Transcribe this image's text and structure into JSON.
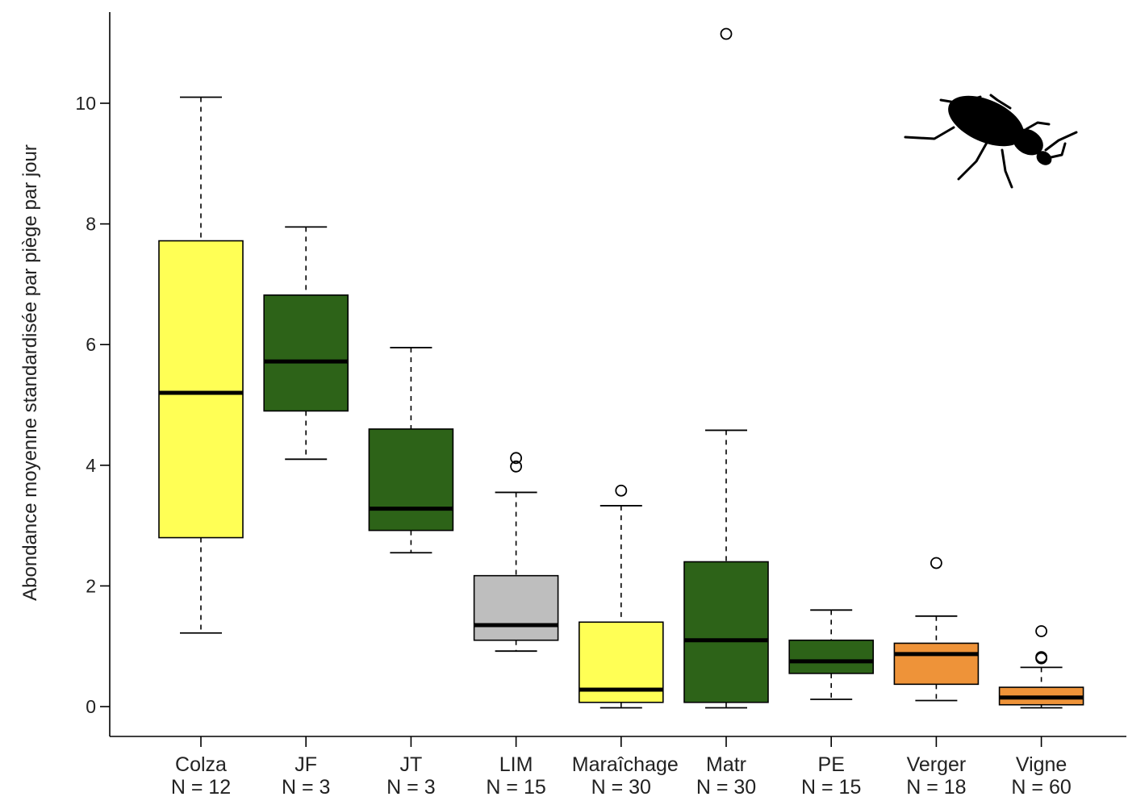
{
  "chart_data": {
    "type": "boxplot",
    "ylabel": "Abondance moyenne standardisée par piège par jour",
    "ylim": [
      -0.5,
      11.5
    ],
    "yticks": [
      0,
      2,
      4,
      6,
      8,
      10
    ],
    "ytick_labels": [
      "0",
      "2",
      "4",
      "6",
      "8",
      "10"
    ],
    "grid": false,
    "legend": "none",
    "icon": "beetle-silhouette-icon",
    "categories": [
      {
        "name": "Colza",
        "n_label": "N = 12",
        "color": "#FFFF55",
        "min": 1.22,
        "q1": 2.8,
        "median": 5.2,
        "q3": 7.72,
        "max": 10.1,
        "outliers": []
      },
      {
        "name": "JF",
        "n_label": "N = 3",
        "color": "#2D6318",
        "min": 4.1,
        "q1": 4.9,
        "median": 5.72,
        "q3": 6.82,
        "max": 7.95,
        "outliers": []
      },
      {
        "name": "JT",
        "n_label": "N = 3",
        "color": "#2D6318",
        "min": 2.55,
        "q1": 2.92,
        "median": 3.28,
        "q3": 4.6,
        "max": 5.95,
        "outliers": []
      },
      {
        "name": "LIM",
        "n_label": "N = 15",
        "color": "#BEBEBE",
        "min": 0.92,
        "q1": 1.1,
        "median": 1.35,
        "q3": 2.17,
        "max": 3.55,
        "outliers": [
          3.98,
          4.12
        ]
      },
      {
        "name": "Maraîchage",
        "n_label": "N = 30",
        "color": "#FFFF55",
        "min": -0.02,
        "q1": 0.07,
        "median": 0.28,
        "q3": 1.4,
        "max": 3.33,
        "outliers": [
          3.58
        ]
      },
      {
        "name": "Matr",
        "n_label": "N = 30",
        "color": "#2D6318",
        "min": -0.02,
        "q1": 0.07,
        "median": 1.1,
        "q3": 2.4,
        "max": 4.58,
        "outliers": [
          11.15
        ]
      },
      {
        "name": "PE",
        "n_label": "N = 15",
        "color": "#2D6318",
        "min": 0.12,
        "q1": 0.55,
        "median": 0.75,
        "q3": 1.1,
        "max": 1.6,
        "outliers": []
      },
      {
        "name": "Verger",
        "n_label": "N = 18",
        "color": "#EE9339",
        "min": 0.1,
        "q1": 0.37,
        "median": 0.87,
        "q3": 1.05,
        "max": 1.5,
        "outliers": [
          2.38
        ]
      },
      {
        "name": "Vigne",
        "n_label": "N = 60",
        "color": "#EE9339",
        "min": -0.02,
        "q1": 0.03,
        "median": 0.15,
        "q3": 0.32,
        "max": 0.65,
        "outliers": [
          0.8,
          0.82,
          1.25
        ]
      }
    ]
  }
}
